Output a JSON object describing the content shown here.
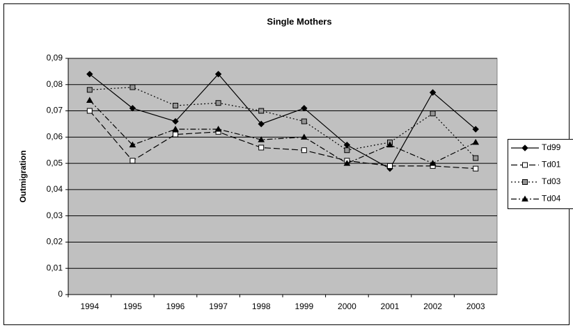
{
  "chart_data": {
    "type": "line",
    "title": "Single Mothers",
    "y_label": "Outmigration",
    "categories": [
      "1994",
      "1995",
      "1996",
      "1997",
      "1998",
      "1999",
      "2000",
      "2001",
      "2002",
      "2003"
    ],
    "series": [
      {
        "name": "Td99",
        "color": "#000000",
        "dash": "none",
        "marker": "diamond",
        "marker_fill": "#000000",
        "values": [
          0.084,
          0.071,
          0.066,
          0.084,
          0.065,
          0.071,
          0.057,
          0.048,
          0.077,
          0.063
        ]
      },
      {
        "name": "Td01",
        "color": "#000000",
        "dash": "9 4",
        "marker": "square",
        "marker_fill": "#ffffff",
        "values": [
          0.07,
          0.051,
          0.061,
          0.062,
          0.056,
          0.055,
          0.051,
          0.049,
          0.049,
          0.048
        ]
      },
      {
        "name": "Td03",
        "color": "#000000",
        "dash": "2 3",
        "marker": "square",
        "marker_fill": "#969696",
        "values": [
          0.078,
          0.079,
          0.072,
          0.073,
          0.07,
          0.066,
          0.055,
          0.058,
          0.069,
          0.052
        ]
      },
      {
        "name": "Td04",
        "color": "#000000",
        "dash": "8 3 2 3",
        "marker": "triangle",
        "marker_fill": "#000000",
        "values": [
          0.074,
          0.057,
          0.063,
          0.063,
          0.059,
          0.06,
          0.05,
          0.057,
          0.05,
          0.058
        ]
      }
    ],
    "ylim": [
      0,
      0.09
    ],
    "yticks": [
      0,
      {
        "value": 0.01,
        "label": "0,01"
      },
      {
        "value": 0.02,
        "label": "0,02"
      },
      {
        "value": 0.03,
        "label": "0,03"
      },
      {
        "value": 0.04,
        "label": "0,04"
      },
      {
        "value": 0.05,
        "label": "0,05"
      },
      {
        "value": 0.06,
        "label": "0,06"
      },
      {
        "value": 0.07,
        "label": "0,07"
      },
      {
        "value": 0.08,
        "label": "0,08"
      },
      {
        "value": 0.09,
        "label": "0,09"
      }
    ],
    "grid": true,
    "plot_background": "#c0c0c0",
    "legend": "right"
  }
}
